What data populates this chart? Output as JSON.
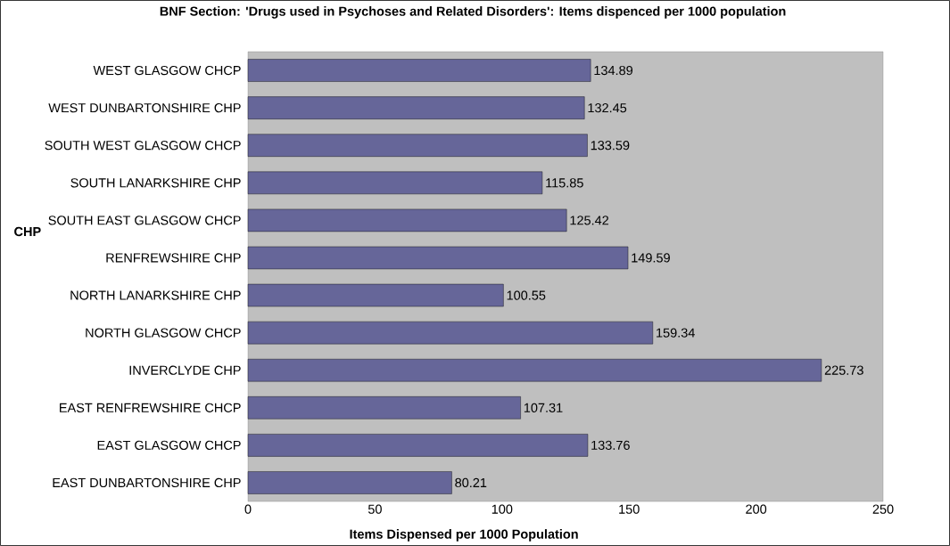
{
  "chart_data": {
    "type": "bar",
    "orientation": "horizontal",
    "title": "BNF Section: 'Drugs used in Psychoses and Related Disorders': Items dispenced per 1000 population",
    "xlabel": "Items Dispensed per 1000 Population",
    "ylabel": "CHP",
    "categories": [
      "WEST GLASGOW CHCP",
      "WEST DUNBARTONSHIRE CHP",
      "SOUTH WEST GLASGOW CHCP",
      "SOUTH LANARKSHIRE CHP",
      "SOUTH EAST GLASGOW CHCP",
      "RENFREWSHIRE CHP",
      "NORTH LANARKSHIRE CHP",
      "NORTH GLASGOW CHCP",
      "INVERCLYDE CHP",
      "EAST RENFREWSHIRE CHCP",
      "EAST GLASGOW CHCP",
      "EAST DUNBARTONSHIRE CHP"
    ],
    "values": [
      134.89,
      132.45,
      133.59,
      115.85,
      125.42,
      149.59,
      100.55,
      159.34,
      225.73,
      107.31,
      133.76,
      80.21
    ],
    "color": "#666699",
    "xlim": [
      0,
      250
    ],
    "xticks": [
      0,
      50,
      100,
      150,
      200,
      250
    ],
    "data_labels": true
  }
}
